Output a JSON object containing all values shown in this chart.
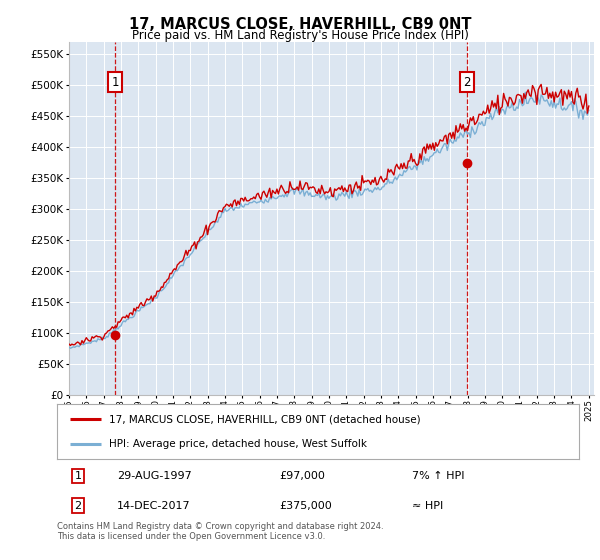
{
  "title": "17, MARCUS CLOSE, HAVERHILL, CB9 0NT",
  "subtitle": "Price paid vs. HM Land Registry's House Price Index (HPI)",
  "legend_line1": "17, MARCUS CLOSE, HAVERHILL, CB9 0NT (detached house)",
  "legend_line2": "HPI: Average price, detached house, West Suffolk",
  "annotation1_date": "29-AUG-1997",
  "annotation1_price": "£97,000",
  "annotation1_hpi": "7% ↑ HPI",
  "annotation2_date": "14-DEC-2017",
  "annotation2_price": "£375,000",
  "annotation2_hpi": "≈ HPI",
  "footer": "Contains HM Land Registry data © Crown copyright and database right 2024.\nThis data is licensed under the Open Government Licence v3.0.",
  "price_color": "#cc0000",
  "hpi_color": "#7bafd4",
  "plot_bg_color": "#dce6f1",
  "annotation_box_color": "#cc0000",
  "ylim": [
    0,
    570000
  ],
  "yticks": [
    0,
    50000,
    100000,
    150000,
    200000,
    250000,
    300000,
    350000,
    400000,
    450000,
    500000,
    550000
  ],
  "sale1_year": 1997.667,
  "sale1_price": 97000,
  "sale2_year": 2017.958,
  "sale2_price": 375000
}
